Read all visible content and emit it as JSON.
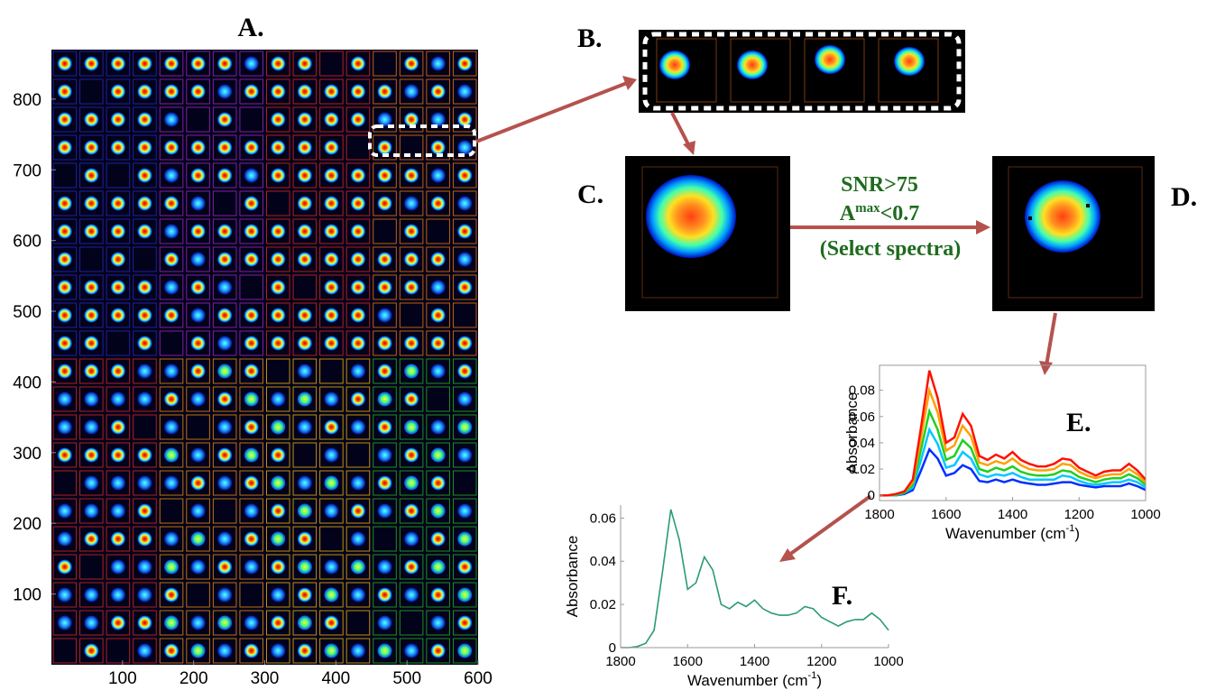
{
  "panel_labels": {
    "a": "A.",
    "b": "B.",
    "c": "C.",
    "d": "D.",
    "e": "E.",
    "f": "F."
  },
  "annotation": {
    "snr": "SNR>75",
    "a": "A",
    "max": "max",
    "a_tail": "<0.7",
    "select": "(Select spectra)"
  },
  "chart_data": [
    {
      "type": "image",
      "xlim": [
        0,
        600
      ],
      "ylim": [
        0,
        870
      ],
      "xticks": [
        100,
        200,
        300,
        400,
        500,
        600
      ],
      "yticks": [
        100,
        200,
        300,
        400,
        500,
        600,
        700,
        800
      ]
    },
    {
      "type": "line",
      "y_label": "Absorbance",
      "x_label": {
        "text": "Wavenumber (cm",
        "sup": "-1",
        "tail": ")"
      },
      "x": [
        1800,
        1775,
        1750,
        1725,
        1700,
        1675,
        1650,
        1625,
        1600,
        1575,
        1550,
        1525,
        1500,
        1475,
        1450,
        1425,
        1400,
        1375,
        1350,
        1325,
        1300,
        1275,
        1250,
        1225,
        1200,
        1175,
        1150,
        1125,
        1100,
        1075,
        1050,
        1025,
        1000
      ],
      "xlim": [
        1800,
        1000
      ],
      "xticks": [
        1800,
        1600,
        1400,
        1200,
        1000
      ],
      "ylim": [
        -0.004,
        0.099
      ],
      "yticks": [
        0,
        0.02,
        0.04,
        0.06,
        0.08
      ],
      "series": [
        {
          "color": "#0030ff",
          "values": [
            0,
            0,
            0,
            0.001,
            0.004,
            0.019,
            0.035,
            0.028,
            0.015,
            0.017,
            0.023,
            0.02,
            0.011,
            0.01,
            0.012,
            0.01,
            0.012,
            0.01,
            0.009,
            0.008,
            0.008,
            0.009,
            0.01,
            0.01,
            0.008,
            0.007,
            0.006,
            0.007,
            0.007,
            0.007,
            0.009,
            0.007,
            0.004
          ]
        },
        {
          "color": "#00c8ff",
          "values": [
            0,
            0,
            0,
            0.002,
            0.006,
            0.027,
            0.05,
            0.039,
            0.021,
            0.023,
            0.033,
            0.028,
            0.016,
            0.014,
            0.016,
            0.015,
            0.017,
            0.014,
            0.012,
            0.012,
            0.012,
            0.012,
            0.015,
            0.014,
            0.011,
            0.009,
            0.008,
            0.009,
            0.01,
            0.01,
            0.012,
            0.01,
            0.006
          ]
        },
        {
          "color": "#20d020",
          "values": [
            0,
            0,
            0.0005,
            0.002,
            0.008,
            0.035,
            0.064,
            0.05,
            0.027,
            0.03,
            0.042,
            0.036,
            0.02,
            0.018,
            0.021,
            0.019,
            0.022,
            0.018,
            0.016,
            0.015,
            0.015,
            0.016,
            0.019,
            0.018,
            0.014,
            0.012,
            0.01,
            0.012,
            0.013,
            0.013,
            0.016,
            0.013,
            0.008
          ]
        },
        {
          "color": "#ffa000",
          "values": [
            0,
            0,
            0.001,
            0.003,
            0.01,
            0.044,
            0.08,
            0.063,
            0.034,
            0.038,
            0.053,
            0.045,
            0.025,
            0.023,
            0.026,
            0.024,
            0.028,
            0.023,
            0.02,
            0.019,
            0.019,
            0.02,
            0.024,
            0.023,
            0.018,
            0.015,
            0.013,
            0.015,
            0.016,
            0.016,
            0.02,
            0.016,
            0.01
          ]
        },
        {
          "color": "#ff1000",
          "values": [
            0,
            0,
            0.001,
            0.003,
            0.012,
            0.052,
            0.095,
            0.074,
            0.04,
            0.044,
            0.062,
            0.053,
            0.03,
            0.027,
            0.031,
            0.028,
            0.033,
            0.027,
            0.024,
            0.022,
            0.022,
            0.024,
            0.028,
            0.027,
            0.021,
            0.018,
            0.015,
            0.018,
            0.019,
            0.019,
            0.024,
            0.019,
            0.012
          ]
        }
      ]
    },
    {
      "type": "line",
      "y_label": "Absorbance",
      "x_label": {
        "text": "Wavenumber (cm",
        "sup": "-1",
        "tail": ")"
      },
      "x": [
        1800,
        1775,
        1750,
        1725,
        1700,
        1675,
        1650,
        1625,
        1600,
        1575,
        1550,
        1525,
        1500,
        1475,
        1450,
        1425,
        1400,
        1375,
        1350,
        1325,
        1300,
        1275,
        1250,
        1225,
        1200,
        1175,
        1150,
        1125,
        1100,
        1075,
        1050,
        1025,
        1000
      ],
      "xlim": [
        1800,
        1000
      ],
      "xticks": [
        1800,
        1600,
        1400,
        1200,
        1000
      ],
      "ylim": [
        0,
        0.066
      ],
      "yticks": [
        0,
        0.02,
        0.04,
        0.06
      ],
      "series": [
        {
          "color": "#2a9a7a",
          "values": [
            0,
            0,
            0.0005,
            0.002,
            0.008,
            0.035,
            0.064,
            0.05,
            0.027,
            0.03,
            0.042,
            0.036,
            0.02,
            0.018,
            0.021,
            0.019,
            0.022,
            0.018,
            0.016,
            0.015,
            0.015,
            0.016,
            0.019,
            0.018,
            0.014,
            0.012,
            0.01,
            0.012,
            0.013,
            0.013,
            0.016,
            0.013,
            0.008
          ]
        }
      ]
    }
  ]
}
